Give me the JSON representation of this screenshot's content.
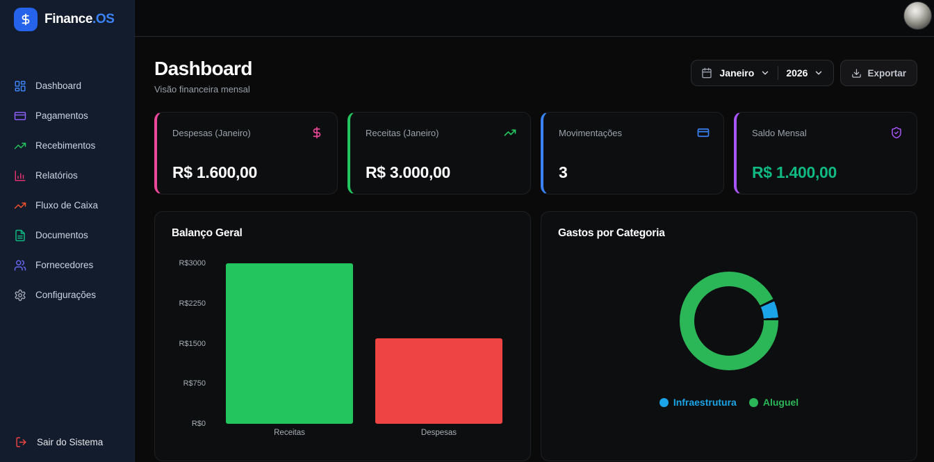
{
  "brand": {
    "logo_icon": "dollar-icon",
    "name_primary": "Finance",
    "name_accent": ".OS",
    "accent_color": "#3b82f6",
    "logo_bg": "#2563eb"
  },
  "topbar": {
    "avatar_icon": "user-avatar"
  },
  "sidebar": {
    "items": [
      {
        "label": "Dashboard",
        "icon": "dashboard-grid-icon",
        "color": "#3b82f6"
      },
      {
        "label": "Pagamentos",
        "icon": "credit-card-icon",
        "color": "#8b5cf6"
      },
      {
        "label": "Recebimentos",
        "icon": "trending-up-icon",
        "color": "#22c55e"
      },
      {
        "label": "Relatórios",
        "icon": "bar-chart-icon",
        "color": "#e0316e"
      },
      {
        "label": "Fluxo de Caixa",
        "icon": "trending-up-icon",
        "color": "#f4512c"
      },
      {
        "label": "Documentos",
        "icon": "file-text-icon",
        "color": "#10b981"
      },
      {
        "label": "Fornecedores",
        "icon": "users-icon",
        "color": "#6366f1"
      },
      {
        "label": "Configurações",
        "icon": "gear-icon",
        "color": "#9ca3af"
      }
    ],
    "logout": {
      "label": "Sair do Sistema",
      "icon": "logout-icon",
      "color": "#ef4444"
    }
  },
  "header": {
    "title": "Dashboard",
    "subtitle": "Visão financeira mensal",
    "month_selector": {
      "value": "Janeiro",
      "icon": "calendar-icon"
    },
    "year_selector": {
      "value": "2026"
    },
    "export_button": {
      "label": "Exportar",
      "icon": "download-icon"
    }
  },
  "stats": [
    {
      "label": "Despesas (Janeiro)",
      "value": "R$ 1.600,00",
      "icon": "dollar-icon",
      "accent_color": "#ec4899",
      "value_color": "#ffffff"
    },
    {
      "label": "Receitas (Janeiro)",
      "value": "R$ 3.000,00",
      "icon": "trending-up-icon",
      "accent_color": "#22c55e",
      "value_color": "#ffffff"
    },
    {
      "label": "Movimentações",
      "value": "3",
      "icon": "credit-card-icon",
      "accent_color": "#3b82f6",
      "value_color": "#ffffff"
    },
    {
      "label": "Saldo Mensal",
      "value": "R$ 1.400,00",
      "icon": "shield-check-icon",
      "accent_color": "#a855f7",
      "value_color": "#10b981"
    }
  ],
  "chart_data": [
    {
      "type": "bar",
      "title": "Balanço Geral",
      "categories": [
        "Receitas",
        "Despesas"
      ],
      "values": [
        3000,
        1600
      ],
      "colors": [
        "#22c55e",
        "#ef4444"
      ],
      "ylim": [
        0,
        3000
      ],
      "yticks": [
        3000,
        2250,
        1500,
        750,
        0
      ],
      "ytick_labels": [
        "R$3000",
        "R$2250",
        "R$1500",
        "R$750",
        "R$0"
      ],
      "grid": false,
      "xlabel": "",
      "ylabel": ""
    },
    {
      "type": "pie",
      "donut": true,
      "title": "Gastos por Categoria",
      "slices": [
        {
          "label": "Infraestrutura",
          "value": 100,
          "color": "#1ba5e8"
        },
        {
          "label": "Aluguel",
          "value": 1500,
          "color": "#2bb757"
        }
      ],
      "start_angle_deg": 65,
      "slice_gap_deg": 3,
      "legend_position": "bottom"
    }
  ]
}
